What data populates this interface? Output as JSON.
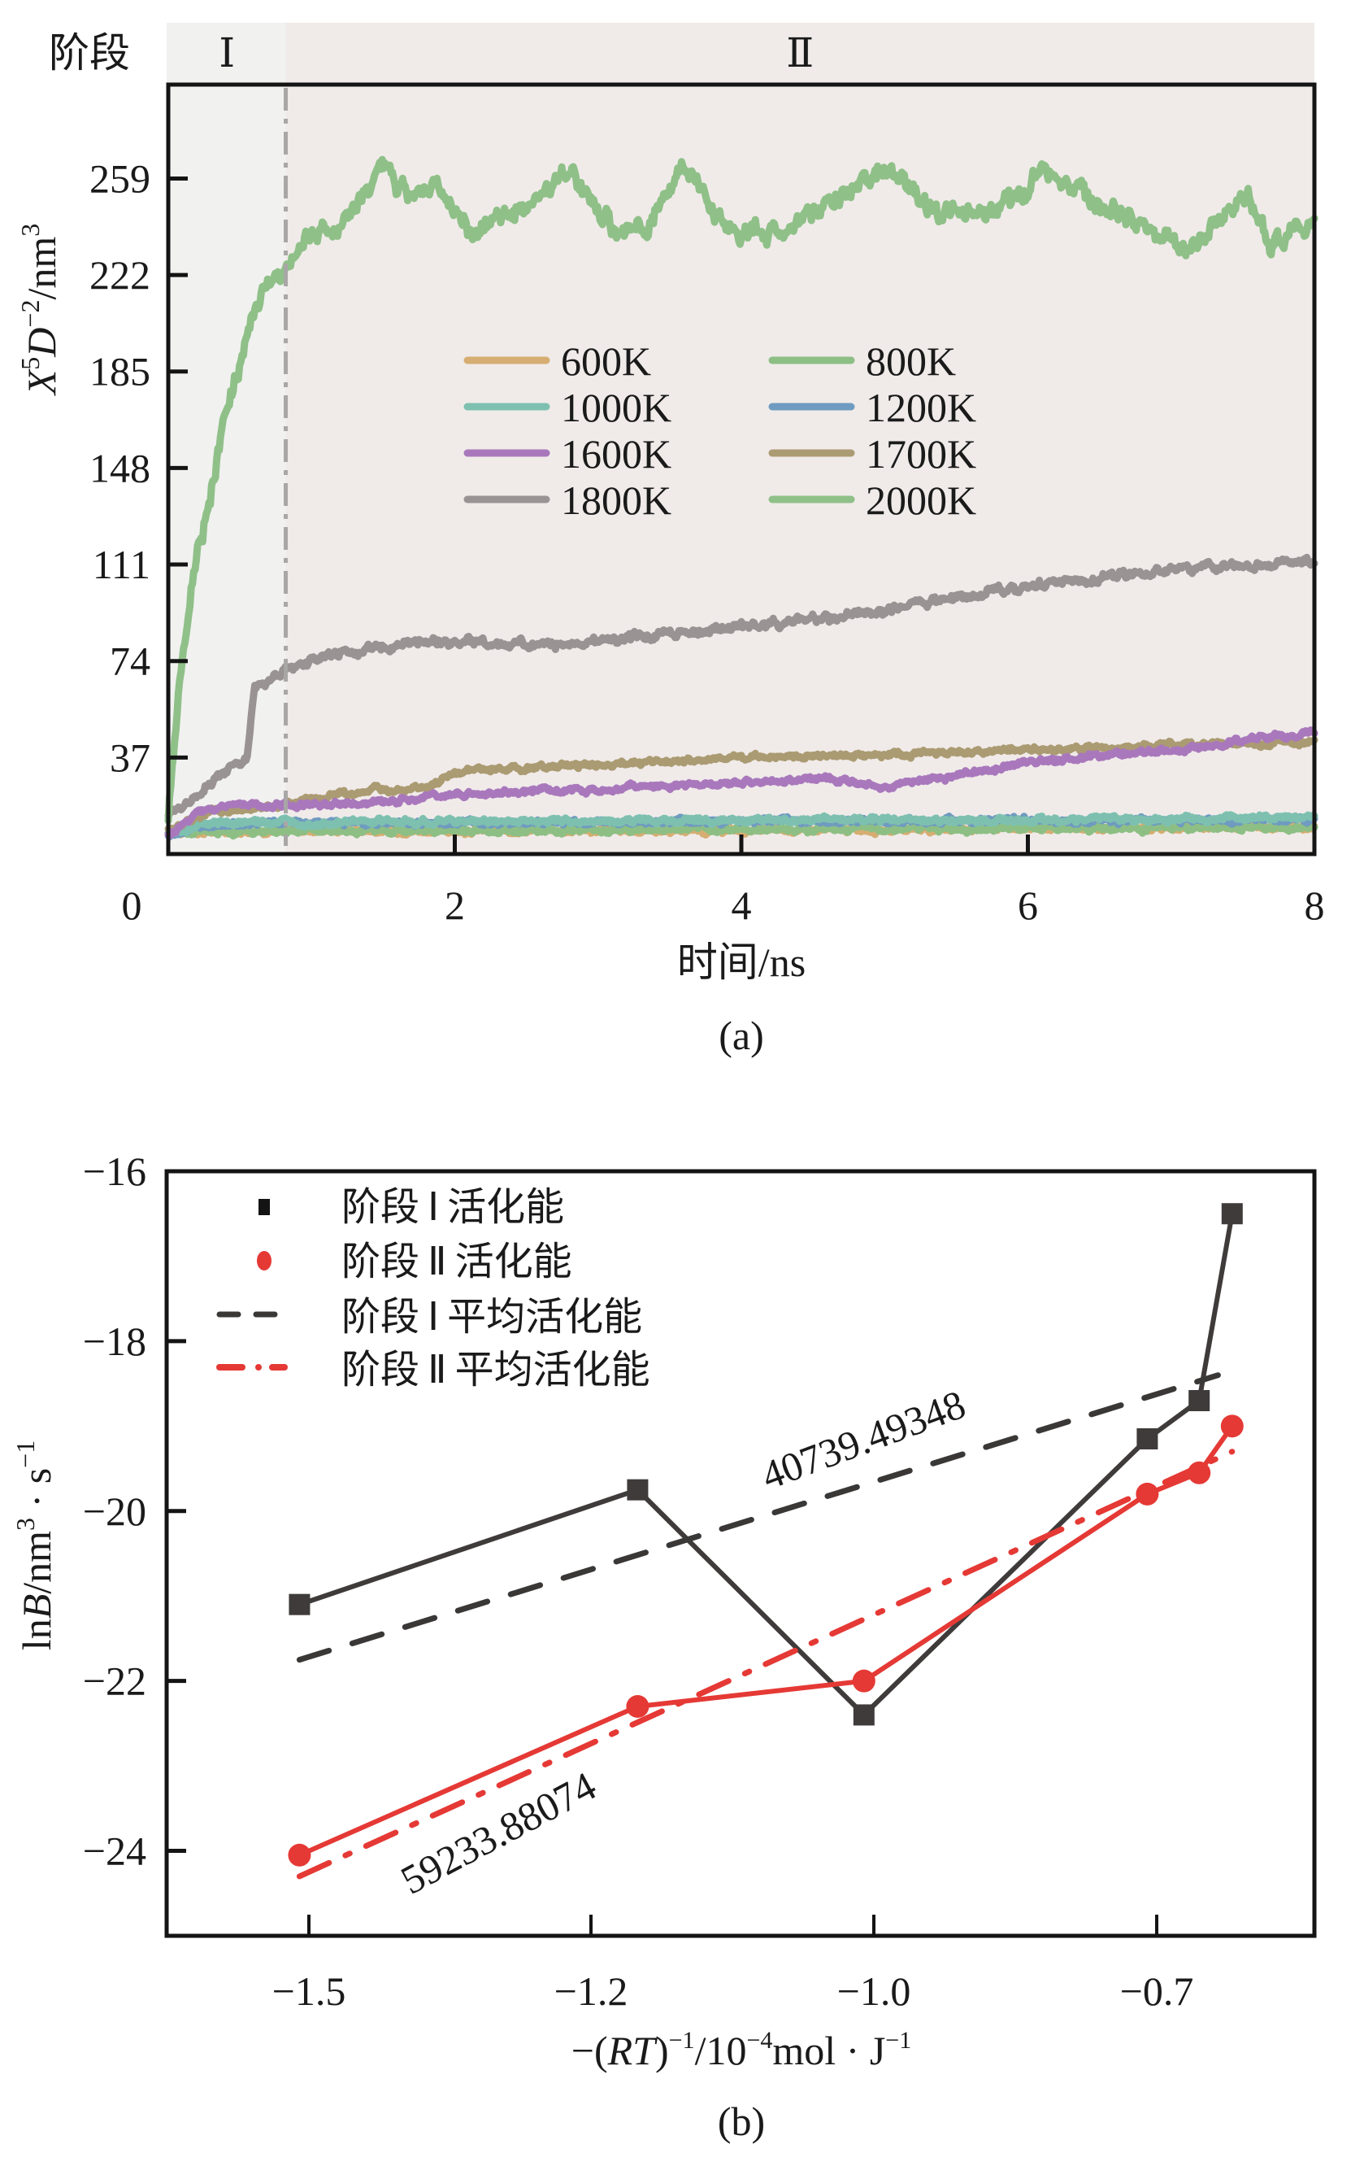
{
  "chart_data": [
    {
      "id": "a",
      "type": "line",
      "caption": "(a)",
      "title": "",
      "xlabel": "时间/ns",
      "ylabel_parts": {
        "x": "X",
        "x_sup": "5",
        "d": "D",
        "d_sup": "−2",
        "unit": "/nm",
        "unit_sup": "3"
      },
      "ylabel": "X^5D^-2/nm^3",
      "xlim": [
        0,
        8
      ],
      "ylim": [
        0,
        295
      ],
      "xticks": [
        2,
        4,
        6,
        8
      ],
      "xtick_labels": [
        "2",
        "4",
        "6",
        "8"
      ],
      "yticks": [
        37,
        74,
        111,
        148,
        185,
        222,
        259
      ],
      "ytick_labels": [
        "37",
        "74",
        "111",
        "148",
        "185",
        "222",
        "259"
      ],
      "origin_label": "0",
      "grid": false,
      "stages": {
        "header_label": "阶段",
        "boundary_x": 0.82,
        "items": [
          {
            "label": "Ⅰ",
            "range": [
              0,
              0.82
            ],
            "color": "#f1f1f0"
          },
          {
            "label": "Ⅱ",
            "range": [
              0.82,
              8
            ],
            "color": "#f0ebe9"
          }
        ],
        "boundary_color": "#a9a6a6"
      },
      "legend": {
        "placement": "center",
        "columns": 2
      },
      "series": [
        {
          "name": "600K",
          "color": "#d6ad72",
          "x": [
            0,
            0.5,
            1,
            2,
            3,
            4,
            5,
            6,
            7,
            7.5,
            8
          ],
          "y": [
            8,
            9,
            9,
            9,
            9,
            9,
            9.5,
            10,
            10,
            11,
            10
          ]
        },
        {
          "name": "800K",
          "color": "#8dbf84",
          "x": [
            0,
            1,
            2,
            4,
            6,
            7,
            8
          ],
          "y": [
            8,
            9,
            9,
            9.5,
            10,
            10,
            10
          ]
        },
        {
          "name": "1000K",
          "color": "#7ec0b0",
          "x": [
            0,
            0.3,
            1,
            2,
            4,
            6,
            8
          ],
          "y": [
            8,
            12,
            12,
            12.5,
            13,
            13,
            14
          ]
        },
        {
          "name": "1200K",
          "color": "#6f9bc0",
          "x": [
            0,
            0.3,
            1,
            2,
            4,
            6,
            8
          ],
          "y": [
            7,
            12,
            12,
            12,
            12.5,
            13,
            13
          ]
        },
        {
          "name": "1600K",
          "color": "#a978bc",
          "x": [
            0,
            0.2,
            0.5,
            1,
            1.5,
            2,
            3,
            4,
            4.5,
            5,
            5.5,
            6,
            7,
            8
          ],
          "y": [
            7,
            16,
            19,
            19,
            20,
            23,
            25,
            27,
            29,
            26,
            30,
            35,
            40,
            47
          ]
        },
        {
          "name": "1700K",
          "color": "#ab9b72",
          "x": [
            0,
            0.3,
            0.8,
            1.2,
            1.8,
            2.1,
            3,
            4,
            5,
            6,
            7,
            8
          ],
          "y": [
            10,
            16,
            19,
            23,
            26,
            32,
            34,
            37,
            38,
            40,
            42,
            43
          ]
        },
        {
          "name": "1800K",
          "color": "#999393",
          "x": [
            0,
            0.15,
            0.3,
            0.45,
            0.55,
            0.6,
            0.8,
            1.2,
            1.8,
            2.5,
            3,
            4,
            5,
            6,
            7,
            8
          ],
          "y": [
            15,
            20,
            28,
            34,
            37,
            63,
            70,
            77,
            82,
            80,
            82,
            87,
            93,
            103,
            109,
            113
          ]
        },
        {
          "name": "2000K",
          "color": "#8fc088",
          "x": [
            0,
            0.1,
            0.2,
            0.3,
            0.4,
            0.5,
            0.6,
            0.7,
            0.8,
            0.9,
            1.0,
            1.2,
            1.5,
            1.7,
            1.9,
            2.1,
            2.4,
            2.8,
            3.1,
            3.3,
            3.6,
            3.9,
            4.2,
            4.5,
            5.0,
            5.4,
            5.8,
            6.1,
            6.5,
            6.9,
            7.2,
            7.5,
            7.7,
            7.9,
            8.0
          ],
          "y": [
            15,
            75,
            115,
            140,
            170,
            190,
            210,
            218,
            222,
            235,
            238,
            240,
            262,
            250,
            255,
            240,
            245,
            262,
            240,
            238,
            265,
            240,
            238,
            245,
            262,
            245,
            245,
            262,
            250,
            238,
            232,
            256,
            232,
            240,
            242
          ]
        }
      ]
    },
    {
      "id": "b",
      "type": "line",
      "caption": "(b)",
      "title": "",
      "xlabel": "−(RT)⁻¹/10⁻⁴mol · J⁻¹",
      "xlabel_parts": {
        "pre": "−(",
        "it": "RT",
        "post": ")",
        "sup1": "−1",
        "mid": "/10",
        "sup2": "−4",
        "tail": "mol · J",
        "sup3": "−1"
      },
      "ylabel": "lnB/nm^3 · s^-1",
      "ylabel_parts": {
        "ln": "ln",
        "b": "B",
        "unit": "/nm",
        "sup": "3",
        "dot": " · s",
        "sup2": "−1"
      },
      "xticks": [
        -1.5,
        -1.2,
        -1.0,
        -0.7
      ],
      "xtick_labels": [
        "−1.5",
        "−1.2",
        "−1.0",
        "−0.7"
      ],
      "xaxis_note": "tick labels evenly spaced (non-linear axis)",
      "ylim": [
        -25,
        -16
      ],
      "yticks": [
        -16,
        -18,
        -20,
        -22,
        -24
      ],
      "ytick_labels": [
        "−16",
        "−18",
        "−20",
        "−22",
        "−24"
      ],
      "grid": false,
      "legend": {
        "placement": "top-left"
      },
      "series": [
        {
          "name": "阶段Ⅰ活化能",
          "legend_parts": [
            "阶段",
            "Ⅰ",
            "活化能"
          ],
          "kind": "marker-line",
          "marker": "square",
          "color": "#3f3b3b",
          "x": [
            -1.51,
            -1.167,
            -1.007,
            -0.71,
            -0.655,
            -0.62
          ],
          "y": [
            -21.1,
            -19.75,
            -22.4,
            -19.15,
            -18.7,
            -16.5
          ]
        },
        {
          "name": "阶段Ⅱ活化能",
          "legend_parts": [
            "阶段",
            "Ⅱ",
            "活化能"
          ],
          "kind": "marker-line",
          "marker": "circle",
          "color": "#e53935",
          "x": [
            -1.51,
            -1.167,
            -1.007,
            -0.71,
            -0.655,
            -0.62
          ],
          "y": [
            -24.05,
            -22.3,
            -22.0,
            -19.8,
            -19.55,
            -19.0
          ]
        },
        {
          "name": "阶段Ⅰ平均活化能",
          "legend_parts": [
            "阶段",
            "Ⅰ",
            "平均活化能"
          ],
          "kind": "dashed-fit",
          "color": "#3a3737",
          "x": [
            -1.51,
            -0.635
          ],
          "y": [
            -21.75,
            -18.4
          ],
          "annotation": "40739.49348"
        },
        {
          "name": "阶段Ⅱ平均活化能",
          "legend_parts": [
            "阶段",
            "Ⅱ",
            "平均活化能"
          ],
          "kind": "dashdot-fit",
          "color": "#e53935",
          "x": [
            -1.51,
            -0.62
          ],
          "y": [
            -24.3,
            -19.3
          ],
          "annotation": "59233.88074"
        }
      ]
    }
  ]
}
